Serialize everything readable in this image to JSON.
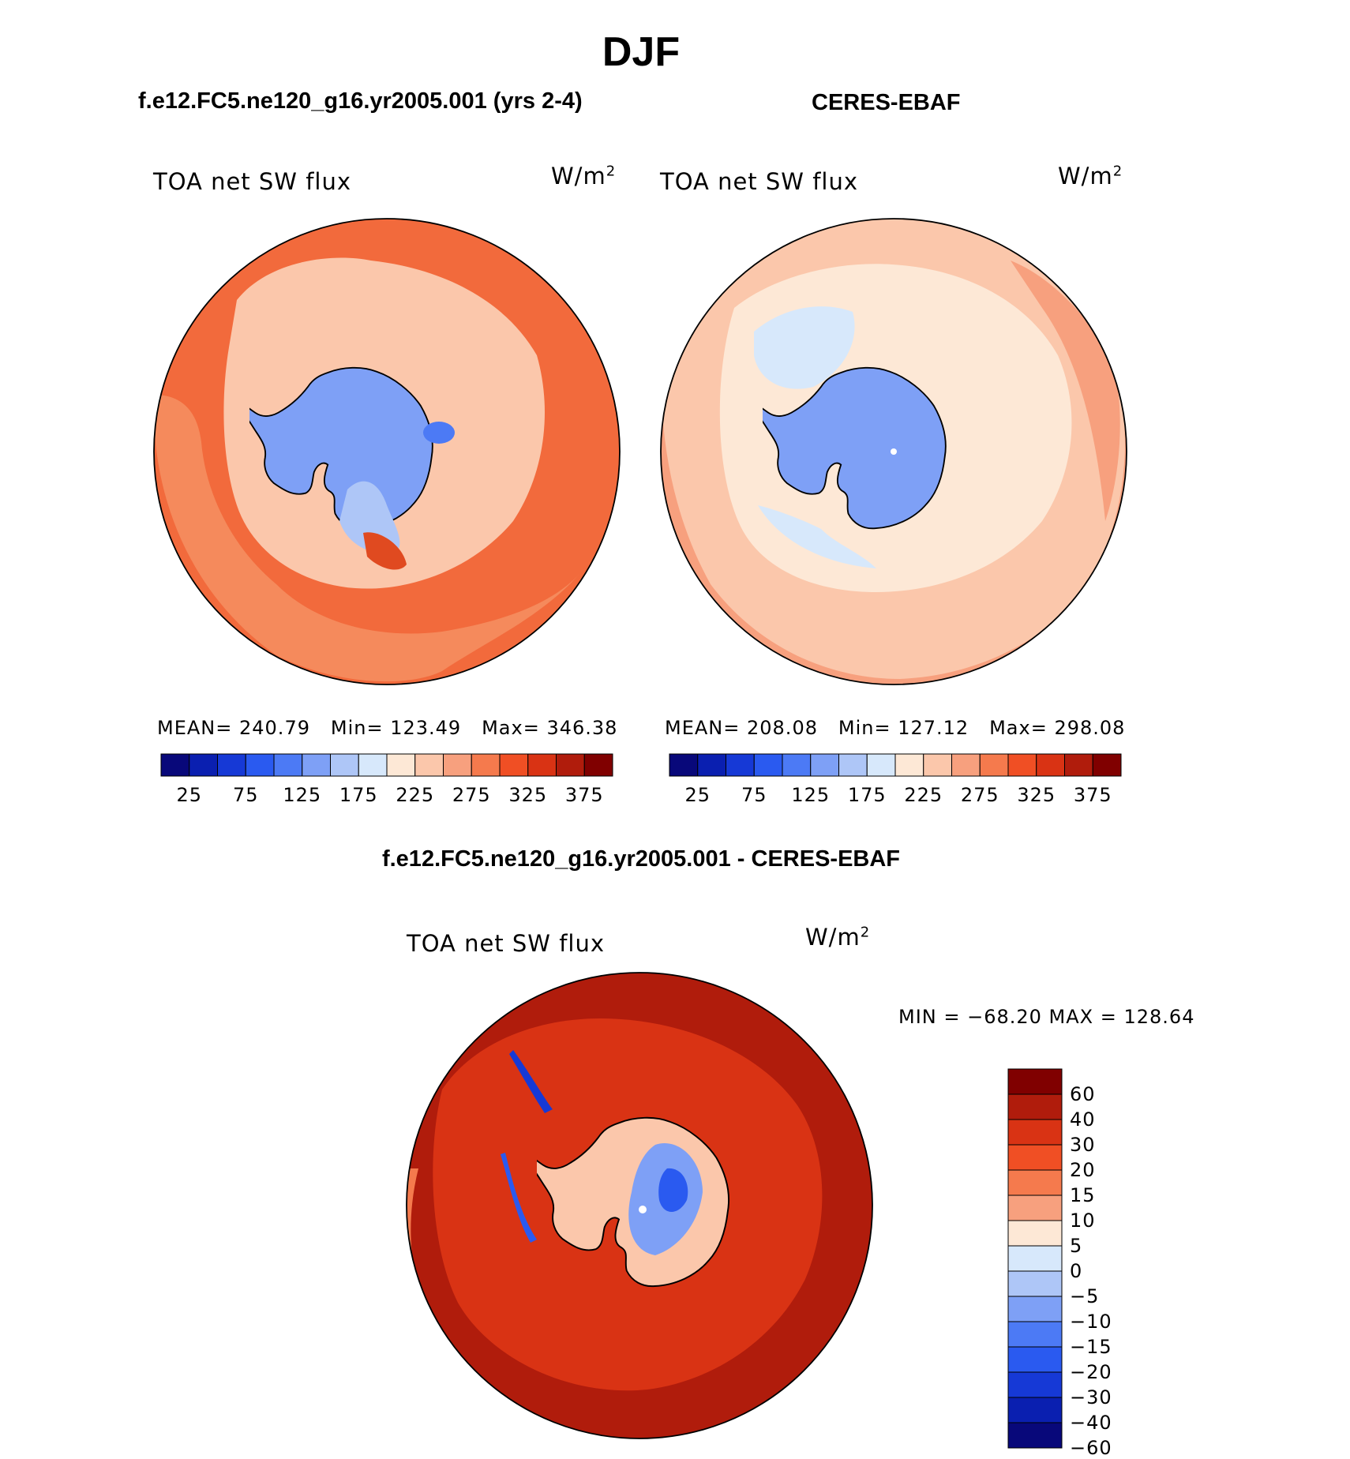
{
  "figure": {
    "season": "DJF",
    "model_title": "f.e12.FC5.ne120_g16.yr2005.001 (yrs 2-4)",
    "obs_title": "CERES-EBAF",
    "diff_title": "f.e12.FC5.ne120_g16.yr2005.001 - CERES-EBAF"
  },
  "panels": {
    "model": {
      "variable": "TOA net SW flux",
      "units_base": "W/m",
      "units_exp": "2",
      "mean_label": "MEAN=",
      "mean": "240.79",
      "min_label": "Min=",
      "min": "123.49",
      "max_label": "Max=",
      "max": "346.38"
    },
    "obs": {
      "variable": "TOA net SW flux",
      "units_base": "W/m",
      "units_exp": "2",
      "mean_label": "MEAN=",
      "mean": "208.08",
      "min_label": "Min=",
      "min": "127.12",
      "max_label": "Max=",
      "max": "298.08"
    },
    "diff": {
      "variable": "TOA net SW flux",
      "units_base": "W/m",
      "units_exp": "2",
      "minmax_text": "MIN = −68.20 MAX = 128.64"
    }
  },
  "colorbars": {
    "abs": {
      "colors": [
        "#08087a",
        "#0a1fb0",
        "#1639d6",
        "#2a5af0",
        "#4c7af5",
        "#7ea0f6",
        "#aec6f7",
        "#d7e8fb",
        "#fde8d6",
        "#fbc7ab",
        "#f7a07e",
        "#f57a4d",
        "#f04f24",
        "#d93314",
        "#b01c0c",
        "#800000"
      ],
      "ticks": [
        "25",
        "75",
        "125",
        "175",
        "225",
        "275",
        "325",
        "375"
      ]
    },
    "diff": {
      "colors": [
        "#800000",
        "#b01c0c",
        "#d93314",
        "#f04f24",
        "#f57a4d",
        "#f7a07e",
        "#fde8d6",
        "#d7e8fb",
        "#aec6f7",
        "#7ea0f6",
        "#4c7af5",
        "#2a5af0",
        "#1639d6",
        "#0a1fb0",
        "#08087a"
      ],
      "ticks": [
        "60",
        "40",
        "30",
        "20",
        "15",
        "10",
        "5",
        "0",
        "−5",
        "−10",
        "−15",
        "−20",
        "−30",
        "−40",
        "−60"
      ]
    }
  },
  "map_colors": {
    "model_ocean": "#f26a3c",
    "model_band": "#f58a5c",
    "model_cloud": "#fbc7ab",
    "model_ice": "#7ea0f6",
    "obs_ocean": "#f7a07e",
    "obs_band": "#fbc7ab",
    "obs_light": "#fde8d6",
    "obs_ice": "#7ea0f6",
    "diff_ocean": "#b01c0c",
    "diff_mid": "#d93314",
    "diff_land": "#fbc7ab",
    "diff_neg": "#4c7af5"
  }
}
